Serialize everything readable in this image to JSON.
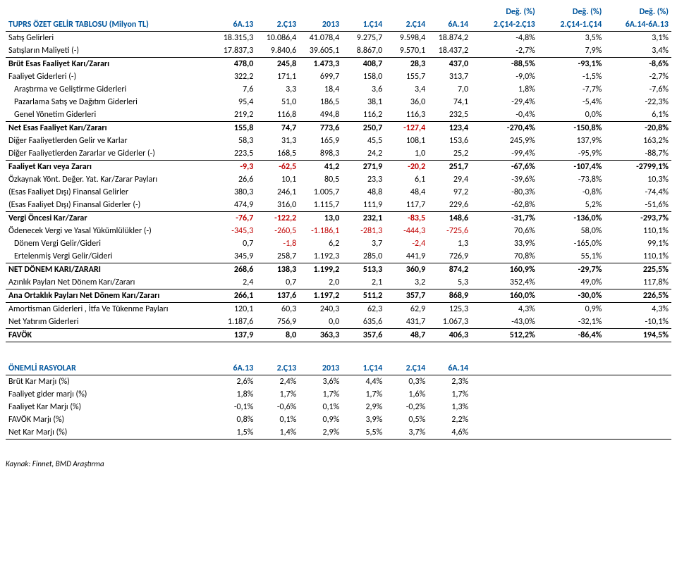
{
  "main": {
    "title": "TUPRS ÖZET GELİR TABLOSU (Milyon TL)",
    "headers1": [
      "",
      "",
      "",
      "",
      "",
      "",
      "",
      "Değ. (%)",
      "Değ. (%)",
      "Değ. (%)"
    ],
    "headers2": [
      "6A.13",
      "2.Ç13",
      "2013",
      "1.Ç14",
      "2.Ç14",
      "6A.14",
      "2.Ç14-2.Ç13",
      "2.Ç14-1.Ç14",
      "6A.14-6A.13"
    ],
    "rows": [
      {
        "label": "Satış Gelirleri",
        "v": [
          "18.315,3",
          "10.086,4",
          "41.078,4",
          "9.275,7",
          "9.598,4",
          "18.874,2",
          "-4,8%",
          "3,5%",
          "3,1%"
        ],
        "bold": false
      },
      {
        "label": "Satışların Maliyeti (-)",
        "v": [
          "17.837,3",
          "9.840,6",
          "39.605,1",
          "8.867,0",
          "9.570,1",
          "18.437,2",
          "-2,7%",
          "7,9%",
          "3,4%"
        ],
        "bold": false
      },
      {
        "label": "Brüt Esas Faaliyet Karı/Zararı",
        "v": [
          "478,0",
          "245,8",
          "1.473,3",
          "408,7",
          "28,3",
          "437,0",
          "-88,5%",
          "-93,1%",
          "-8,6%"
        ],
        "bold": true,
        "bt": true
      },
      {
        "label": "Faaliyet Giderleri (-)",
        "v": [
          "322,2",
          "171,1",
          "699,7",
          "158,0",
          "155,7",
          "313,7",
          "-9,0%",
          "-1,5%",
          "-2,7%"
        ],
        "bold": false
      },
      {
        "label": "Araştırma ve Geliştirme Giderleri",
        "v": [
          "7,6",
          "3,3",
          "18,4",
          "3,6",
          "3,4",
          "7,0",
          "1,8%",
          "-7,7%",
          "-7,6%"
        ],
        "bold": false,
        "ind": true
      },
      {
        "label": "Pazarlama Satış ve Dağıtım Giderleri",
        "v": [
          "95,4",
          "51,0",
          "186,5",
          "38,1",
          "36,0",
          "74,1",
          "-29,4%",
          "-5,4%",
          "-22,3%"
        ],
        "bold": false,
        "ind": true
      },
      {
        "label": "Genel Yönetim Giderleri",
        "v": [
          "219,2",
          "116,8",
          "494,8",
          "116,2",
          "116,3",
          "232,5",
          "-0,4%",
          "0,0%",
          "6,1%"
        ],
        "bold": false,
        "ind": true
      },
      {
        "label": "Net Esas Faaliyet Karı/Zararı",
        "v": [
          "155,8",
          "74,7",
          "773,6",
          "250,7",
          "-127,4",
          "123,4",
          "-270,4%",
          "-150,8%",
          "-20,8%"
        ],
        "bold": true,
        "bt": true,
        "neg": [
          4
        ]
      },
      {
        "label": "Diğer Faaliyetlerden Gelir ve Karlar",
        "v": [
          "58,3",
          "31,3",
          "165,9",
          "45,5",
          "108,1",
          "153,6",
          "245,9%",
          "137,9%",
          "163,2%"
        ],
        "bold": false
      },
      {
        "label": "Diğer Faaliyetlerden Zararlar ve Giderler (-)",
        "v": [
          "223,5",
          "168,5",
          "898,3",
          "24,2",
          "1,0",
          "25,2",
          "-99,4%",
          "-95,9%",
          "-88,7%"
        ],
        "bold": false
      },
      {
        "label": "Faaliyet Karı veya Zararı",
        "v": [
          "-9,3",
          "-62,5",
          "41,2",
          "271,9",
          "-20,2",
          "251,7",
          "-67,6%",
          "-107,4%",
          "-2799,1%"
        ],
        "bold": true,
        "bt": true,
        "neg": [
          0,
          1,
          4
        ]
      },
      {
        "label": "Özkaynak Yönt. Değer. Yat. Kar/Zarar Payları",
        "v": [
          "26,6",
          "10,1",
          "80,5",
          "23,3",
          "6,1",
          "29,4",
          "-39,6%",
          "-73,8%",
          "10,3%"
        ],
        "bold": false
      },
      {
        "label": "(Esas Faaliyet Dışı) Finansal Gelirler",
        "v": [
          "380,3",
          "246,1",
          "1.005,7",
          "48,8",
          "48,4",
          "97,2",
          "-80,3%",
          "-0,8%",
          "-74,4%"
        ],
        "bold": false
      },
      {
        "label": "(Esas Faaliyet Dışı) Finansal Giderler (-)",
        "v": [
          "474,9",
          "316,0",
          "1.115,7",
          "111,9",
          "117,7",
          "229,6",
          "-62,8%",
          "5,2%",
          "-51,6%"
        ],
        "bold": false
      },
      {
        "label": "Vergi Öncesi Kar/Zarar",
        "v": [
          "-76,7",
          "-122,2",
          "13,0",
          "232,1",
          "-83,5",
          "148,6",
          "-31,7%",
          "-136,0%",
          "-293,7%"
        ],
        "bold": true,
        "bt": true,
        "neg": [
          0,
          1,
          4
        ]
      },
      {
        "label": "Ödenecek Vergi ve Yasal Yükümlülükler (-)",
        "v": [
          "-345,3",
          "-260,5",
          "-1.186,1",
          "-281,3",
          "-444,3",
          "-725,6",
          "70,6%",
          "58,0%",
          "110,1%"
        ],
        "bold": false,
        "neg": [
          0,
          1,
          2,
          3,
          4,
          5
        ]
      },
      {
        "label": "Dönem Vergi Gelir/Gideri",
        "v": [
          "0,7",
          "-1,8",
          "6,2",
          "3,7",
          "-2,4",
          "1,3",
          "33,9%",
          "-165,0%",
          "99,1%"
        ],
        "bold": false,
        "ind": true,
        "neg": [
          1,
          4
        ]
      },
      {
        "label": "Ertelenmiş Vergi Gelir/Gideri",
        "v": [
          "345,9",
          "258,7",
          "1.192,3",
          "285,0",
          "441,9",
          "726,9",
          "70,8%",
          "55,1%",
          "110,1%"
        ],
        "bold": false,
        "ind": true
      },
      {
        "label": "NET DÖNEM KARI/ZARARI",
        "v": [
          "268,6",
          "138,3",
          "1.199,2",
          "513,3",
          "360,9",
          "874,2",
          "160,9%",
          "-29,7%",
          "225,5%"
        ],
        "bold": true,
        "bt": true
      },
      {
        "label": "Azınlık Payları Net Dönem Karı/Zararı",
        "v": [
          "2,4",
          "0,7",
          "2,0",
          "2,1",
          "3,2",
          "5,3",
          "352,4%",
          "49,0%",
          "117,8%"
        ],
        "bold": false
      },
      {
        "label": "Ana Ortaklık Payları Net Dönem Karı/Zararı",
        "v": [
          "266,1",
          "137,6",
          "1.197,2",
          "511,2",
          "357,7",
          "868,9",
          "160,0%",
          "-30,0%",
          "226,5%"
        ],
        "bold": true,
        "bt": true,
        "bb": true
      },
      {
        "label": "Amortisman Giderleri , İtfa Ve Tükenme Payları",
        "v": [
          "120,1",
          "60,3",
          "240,3",
          "62,3",
          "62,9",
          "125,3",
          "4,3%",
          "0,9%",
          "4,3%"
        ],
        "bold": false
      },
      {
        "label": "Net Yatırım Giderleri",
        "v": [
          "1.187,6",
          "756,9",
          "0,0",
          "635,6",
          "431,7",
          "1.067,3",
          "-43,0%",
          "-32,1%",
          "-10,1%"
        ],
        "bold": false
      },
      {
        "label": "FAVÖK",
        "v": [
          "137,9",
          "8,0",
          "363,3",
          "357,6",
          "48,7",
          "406,3",
          "512,2%",
          "-86,4%",
          "194,5%"
        ],
        "bold": true,
        "bt": true,
        "bb": true
      }
    ]
  },
  "ratios": {
    "title": "ÖNEMLİ RASYOLAR",
    "headers": [
      "6A.13",
      "2.Ç13",
      "2013",
      "1.Ç14",
      "2.Ç14",
      "6A.14"
    ],
    "rows": [
      {
        "label": "Brüt Kar Marjı (%)",
        "v": [
          "2,6%",
          "2,4%",
          "3,6%",
          "4,4%",
          "0,3%",
          "2,3%"
        ]
      },
      {
        "label": "Faaliyet gider marjı (%)",
        "v": [
          "1,8%",
          "1,7%",
          "1,7%",
          "1,7%",
          "1,6%",
          "1,7%"
        ]
      },
      {
        "label": "Faaliyet Kar Marjı (%)",
        "v": [
          "-0,1%",
          "-0,6%",
          "0,1%",
          "2,9%",
          "-0,2%",
          "1,3%"
        ]
      },
      {
        "label": "FAVÖK Marjı (%)",
        "v": [
          "0,8%",
          "0,1%",
          "0,9%",
          "3,9%",
          "0,5%",
          "2,2%"
        ]
      },
      {
        "label": "Net Kar Marjı (%)",
        "v": [
          "1,5%",
          "1,4%",
          "2,9%",
          "5,5%",
          "3,7%",
          "4,6%"
        ]
      }
    ]
  },
  "source": "Kaynak: Finnet, BMD Araştırma"
}
